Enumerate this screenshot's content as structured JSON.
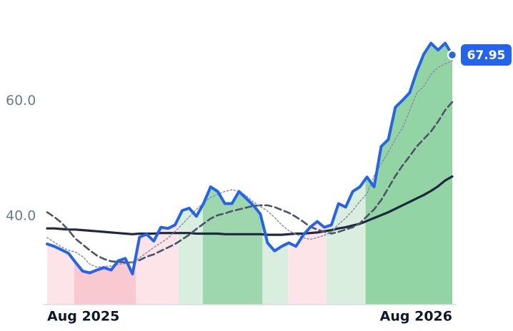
{
  "chart_data": {
    "type": "line",
    "categories": [
      "Aug 2025",
      null,
      null,
      null,
      null,
      null,
      null,
      null,
      null,
      null,
      null,
      null,
      null,
      null,
      null,
      null,
      null,
      null,
      null,
      null,
      null,
      null,
      null,
      null,
      null,
      null,
      null,
      null,
      null,
      null,
      null,
      null,
      null,
      null,
      null,
      null,
      null,
      null,
      null,
      null,
      null,
      null,
      null,
      null,
      null,
      null,
      null,
      null,
      null,
      null,
      null,
      null,
      null,
      null,
      null,
      null,
      null,
      "Aug 2026"
    ],
    "ylim": [
      24.7,
      75
    ],
    "yticks": [
      {
        "value": 40,
        "label": "40.0"
      },
      {
        "value": 60,
        "label": "60.0"
      }
    ],
    "grid": false,
    "series": [
      {
        "color": "#2563eb",
        "style": "solid",
        "width": 4,
        "values": [
          35.2,
          34.8,
          34.2,
          33.6,
          32.0,
          30.5,
          30.2,
          30.7,
          31.1,
          30.7,
          32.3,
          32.7,
          30.0,
          36.4,
          36.9,
          35.7,
          38.1,
          37.9,
          38.5,
          41.0,
          41.4,
          40.0,
          42.2,
          45.1,
          44.3,
          42.2,
          42.2,
          44.3,
          43.1,
          41.9,
          40.4,
          35.4,
          34.0,
          34.8,
          35.4,
          34.8,
          36.7,
          38.1,
          39.1,
          38.1,
          38.5,
          42.2,
          41.6,
          44.3,
          45.1,
          46.8,
          45.1,
          52.1,
          53.3,
          58.9,
          60.1,
          61.4,
          65.1,
          68.1,
          70.0,
          68.8,
          70.0,
          67.95
        ]
      },
      {
        "color": "#8a94a8",
        "style": "dotted",
        "width": 1.6,
        "values": [
          36.3,
          35.5,
          34.7,
          34.1,
          33.8,
          33.0,
          31.7,
          31.2,
          31.3,
          31.4,
          31.7,
          31.8,
          32.0,
          32.8,
          33.7,
          34.6,
          35.4,
          36.2,
          37.4,
          38.6,
          39.9,
          41.2,
          42.3,
          43.3,
          43.8,
          44.3,
          44.6,
          44.3,
          43.6,
          42.5,
          41.7,
          40.9,
          39.8,
          38.5,
          37.5,
          36.9,
          36.3,
          36.0,
          36.3,
          36.7,
          37.3,
          38.6,
          39.7,
          41.0,
          42.6,
          43.9,
          47.0,
          49.1,
          51.1,
          53.4,
          55.3,
          58.3,
          61.4,
          62.5,
          64.6,
          65.8,
          66.4,
          66.9
        ]
      },
      {
        "color": "#4a5568",
        "style": "dashed",
        "width": 2.6,
        "values": [
          40.7,
          39.9,
          38.9,
          37.6,
          36.1,
          35.1,
          34.1,
          33.2,
          32.6,
          32.2,
          32.1,
          32.0,
          32.0,
          32.4,
          33.0,
          33.4,
          34.0,
          34.6,
          35.2,
          36.0,
          36.8,
          37.8,
          38.7,
          39.6,
          40.2,
          40.5,
          40.9,
          41.2,
          41.5,
          41.8,
          41.9,
          41.9,
          41.6,
          41.1,
          40.6,
          39.9,
          39.1,
          38.2,
          37.7,
          37.3,
          37.0,
          37.3,
          37.7,
          38.1,
          38.8,
          40.0,
          41.2,
          42.8,
          44.9,
          47.0,
          48.8,
          50.4,
          52.1,
          53.4,
          54.7,
          56.4,
          58.4,
          59.8
        ]
      },
      {
        "color": "#1e2940",
        "style": "solid",
        "width": 3.2,
        "values": [
          37.9,
          37.9,
          37.8,
          37.7,
          37.7,
          37.6,
          37.5,
          37.4,
          37.3,
          37.2,
          37.1,
          37.0,
          36.9,
          37.0,
          37.0,
          37.0,
          37.1,
          37.1,
          37.1,
          37.1,
          37.1,
          37.0,
          37.0,
          37.0,
          37.0,
          36.9,
          36.9,
          36.9,
          36.9,
          36.9,
          36.9,
          36.8,
          36.8,
          36.8,
          36.9,
          37.0,
          37.0,
          37.1,
          37.2,
          37.4,
          37.6,
          37.9,
          38.1,
          38.4,
          38.7,
          39.2,
          39.7,
          40.2,
          40.7,
          41.3,
          41.9,
          42.5,
          43.1,
          43.7,
          44.4,
          45.2,
          46.2,
          46.9
        ]
      }
    ],
    "regions": [
      {
        "start": 0,
        "end": 3.8,
        "color": "#fde1e6"
      },
      {
        "start": 3.8,
        "end": 12.5,
        "color": "#f8c3cd"
      },
      {
        "start": 12.5,
        "end": 18.5,
        "color": "#fde1e6"
      },
      {
        "start": 18.5,
        "end": 21.9,
        "color": "#d5ecda"
      },
      {
        "start": 21.9,
        "end": 30.3,
        "color": "#93d3a4"
      },
      {
        "start": 30.3,
        "end": 33.9,
        "color": "#d5ecda"
      },
      {
        "start": 33.9,
        "end": 39.3,
        "color": "#fde1e6"
      },
      {
        "start": 39.3,
        "end": 44.8,
        "color": "#d5ecda"
      },
      {
        "start": 44.8,
        "end": 57,
        "color": "#86cf99"
      }
    ]
  }
}
